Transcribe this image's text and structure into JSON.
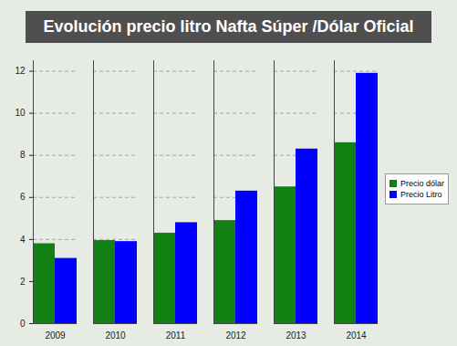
{
  "chart_data": {
    "type": "bar",
    "title": "Evolución precio litro Nafta Súper /Dólar Oficial",
    "categories": [
      "2009",
      "2010",
      "2011",
      "2012",
      "2013",
      "2014"
    ],
    "series": [
      {
        "name": "Precio dólar",
        "color": "#138013",
        "values": [
          3.8,
          3.95,
          4.3,
          4.9,
          6.5,
          8.6
        ]
      },
      {
        "name": "Precio Litro",
        "color": "#0000ff",
        "values": [
          3.1,
          3.9,
          4.8,
          6.3,
          8.3,
          11.9
        ]
      }
    ],
    "ylim": [
      0,
      12.5
    ],
    "yticks": [
      0,
      2,
      4,
      6,
      8,
      10,
      12
    ],
    "grid": true,
    "legend": "right"
  }
}
